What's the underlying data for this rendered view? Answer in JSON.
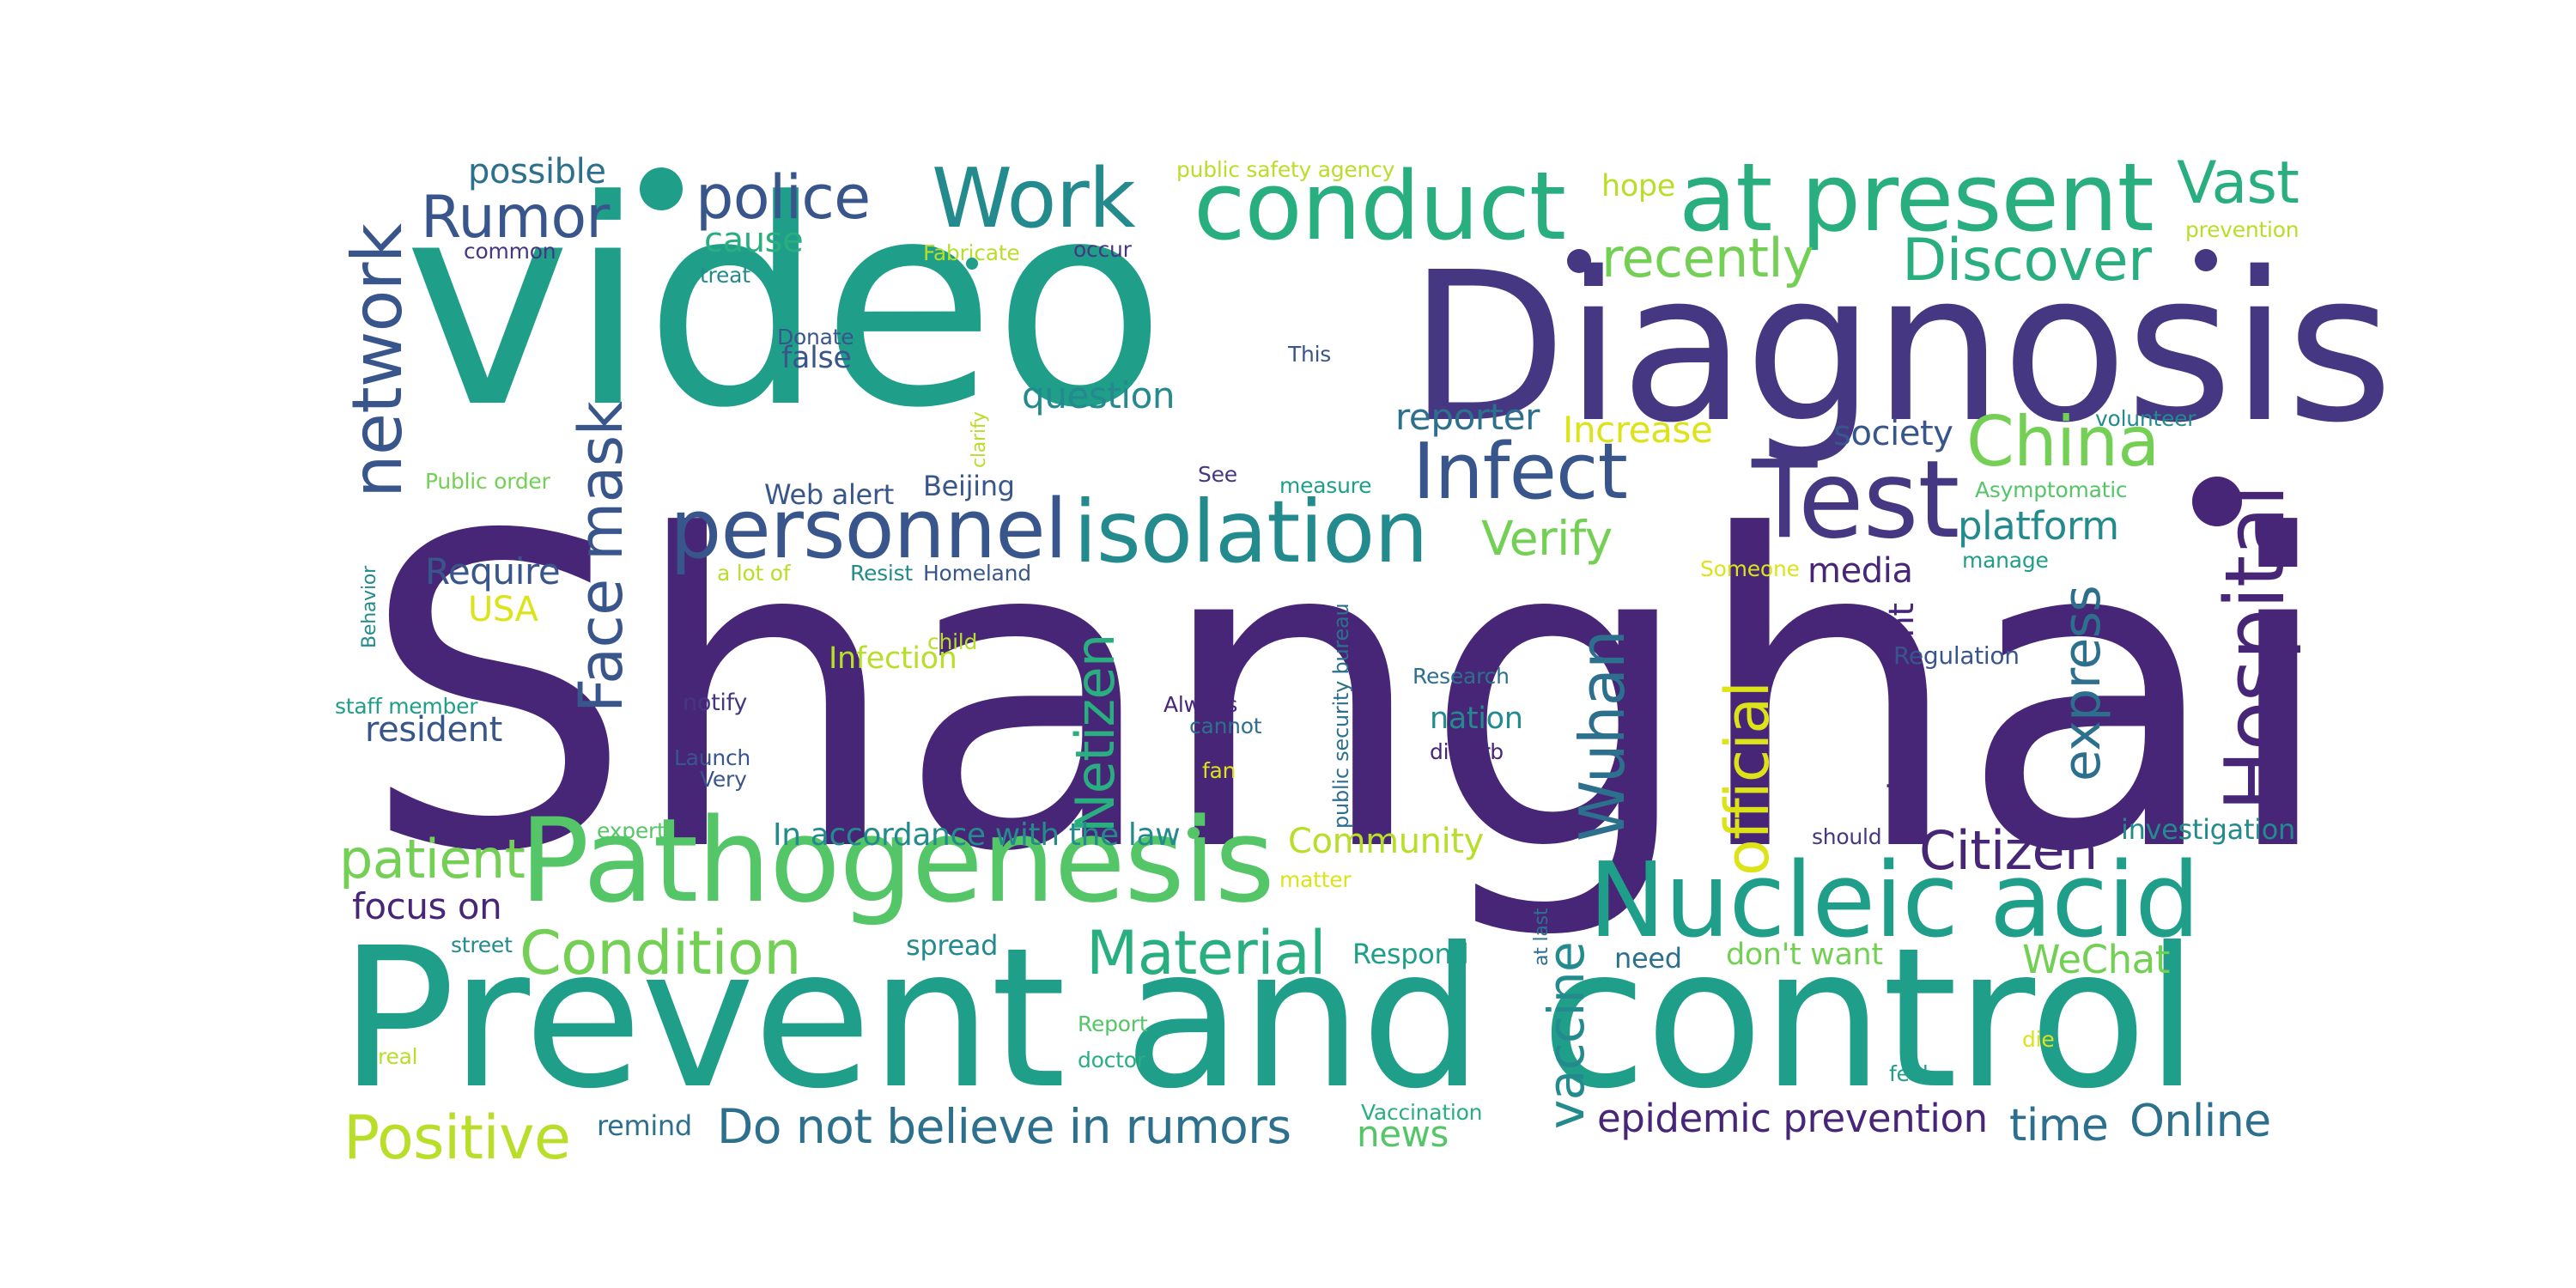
{
  "palette": {
    "c1": "#482677",
    "c2": "#453781",
    "c3": "#39568c",
    "c4": "#2d708e",
    "c5": "#238a8d",
    "c6": "#1f9e89",
    "c7": "#29af7f",
    "c8": "#55c667",
    "c9": "#73d055",
    "c10": "#b8de29",
    "c11": "#dce319"
  },
  "words": [
    {
      "text": "Shanghai",
      "color": "c1"
    },
    {
      "text": "video",
      "color": "c6"
    },
    {
      "text": "Diagnosis",
      "color": "c2"
    },
    {
      "text": "Prevent and control",
      "color": "c6"
    },
    {
      "text": "Pathogenesis",
      "color": "c8"
    },
    {
      "text": "Nucleic acid",
      "color": "c6"
    },
    {
      "text": "conduct",
      "color": "c7"
    },
    {
      "text": "at present",
      "color": "c7"
    },
    {
      "text": "Hospital",
      "color": "c1"
    },
    {
      "text": "Test",
      "color": "c2"
    },
    {
      "text": "isolation",
      "color": "c5"
    },
    {
      "text": "personnel",
      "color": "c3"
    },
    {
      "text": "Infect",
      "color": "c3"
    },
    {
      "text": "Work",
      "color": "c5"
    },
    {
      "text": "network",
      "color": "c3"
    },
    {
      "text": "Face mask",
      "color": "c3"
    },
    {
      "text": "police",
      "color": "c3"
    },
    {
      "text": "Rumor",
      "color": "c3"
    },
    {
      "text": "Vast",
      "color": "c7"
    },
    {
      "text": "Discover",
      "color": "c7"
    },
    {
      "text": "China",
      "color": "c9"
    },
    {
      "text": "recently",
      "color": "c9"
    },
    {
      "text": "Material",
      "color": "c7"
    },
    {
      "text": "Condition",
      "color": "c9"
    },
    {
      "text": "Positive",
      "color": "c10"
    },
    {
      "text": "Do not believe in rumors",
      "color": "c4"
    },
    {
      "text": "Wuhan",
      "color": "c4"
    },
    {
      "text": "official",
      "color": "c11"
    },
    {
      "text": "Netizen",
      "color": "c7"
    },
    {
      "text": "Citizen",
      "color": "c1"
    },
    {
      "text": "express",
      "color": "c4"
    },
    {
      "text": "patient",
      "color": "c9"
    },
    {
      "text": "vaccine",
      "color": "c5"
    },
    {
      "text": "epidemic prevention",
      "color": "c1"
    },
    {
      "text": "Online",
      "color": "c4"
    },
    {
      "text": "time",
      "color": "c4"
    },
    {
      "text": "WeChat",
      "color": "c9"
    },
    {
      "text": "focus on",
      "color": "c1"
    },
    {
      "text": "question",
      "color": "c5"
    },
    {
      "text": "Verify",
      "color": "c9"
    },
    {
      "text": "platform",
      "color": "c5"
    },
    {
      "text": "reporter",
      "color": "c4"
    },
    {
      "text": "Increase",
      "color": "c11"
    },
    {
      "text": "society",
      "color": "c3"
    },
    {
      "text": "media",
      "color": "c1"
    },
    {
      "text": "Community",
      "color": "c10"
    },
    {
      "text": "In accordance with the law",
      "color": "c5"
    },
    {
      "text": "resident",
      "color": "c3"
    },
    {
      "text": "Require",
      "color": "c3"
    },
    {
      "text": "USA",
      "color": "c11"
    },
    {
      "text": "possible",
      "color": "c4"
    },
    {
      "text": "cause",
      "color": "c7"
    },
    {
      "text": "false",
      "color": "c3"
    },
    {
      "text": "department",
      "color": "c1"
    },
    {
      "text": "nation",
      "color": "c5"
    },
    {
      "text": "Infection",
      "color": "c10"
    },
    {
      "text": "investigation",
      "color": "c5"
    },
    {
      "text": "news",
      "color": "c8"
    },
    {
      "text": "remind",
      "color": "c4"
    },
    {
      "text": "Respond",
      "color": "c6"
    },
    {
      "text": "don't want",
      "color": "c9"
    },
    {
      "text": "need",
      "color": "c4"
    },
    {
      "text": "spread",
      "color": "c5"
    },
    {
      "text": "Web alert",
      "color": "c3"
    },
    {
      "text": "Beijing",
      "color": "c3"
    },
    {
      "text": "hope",
      "color": "c10"
    },
    {
      "text": "public safety agency",
      "color": "c10"
    },
    {
      "text": "prevention",
      "color": "c10"
    },
    {
      "text": "common",
      "color": "c2"
    },
    {
      "text": "Fabricate",
      "color": "c10"
    },
    {
      "text": "occur",
      "color": "c2"
    },
    {
      "text": "treat",
      "color": "c5"
    },
    {
      "text": "Donate",
      "color": "c3"
    },
    {
      "text": "This",
      "color": "c3"
    },
    {
      "text": "clarify",
      "color": "c10"
    },
    {
      "text": "volunteer",
      "color": "c5"
    },
    {
      "text": "Public order",
      "color": "c9"
    },
    {
      "text": "See",
      "color": "c2"
    },
    {
      "text": "measure",
      "color": "c6"
    },
    {
      "text": "Asymptomatic",
      "color": "c8"
    },
    {
      "text": "Behavior",
      "color": "c5"
    },
    {
      "text": "a lot of",
      "color": "c10"
    },
    {
      "text": "Resist",
      "color": "c5"
    },
    {
      "text": "Homeland",
      "color": "c3"
    },
    {
      "text": "Someone",
      "color": "c11"
    },
    {
      "text": "manage",
      "color": "c6"
    },
    {
      "text": "child",
      "color": "c10"
    },
    {
      "text": "public security bureau",
      "color": "c4"
    },
    {
      "text": "Research",
      "color": "c4"
    },
    {
      "text": "Regulation",
      "color": "c3"
    },
    {
      "text": "staff member",
      "color": "c6"
    },
    {
      "text": "notify",
      "color": "c2"
    },
    {
      "text": "Always",
      "color": "c1"
    },
    {
      "text": "cannot",
      "color": "c4"
    },
    {
      "text": "disturb",
      "color": "c1"
    },
    {
      "text": "Launch",
      "color": "c3"
    },
    {
      "text": "Very",
      "color": "c3"
    },
    {
      "text": "fan",
      "color": "c11"
    },
    {
      "text": "expert",
      "color": "c8"
    },
    {
      "text": "should",
      "color": "c2"
    },
    {
      "text": "matter",
      "color": "c11"
    },
    {
      "text": "street",
      "color": "c5"
    },
    {
      "text": "at last",
      "color": "c4"
    },
    {
      "text": "Report",
      "color": "c8"
    },
    {
      "text": "doctor",
      "color": "c7"
    },
    {
      "text": "real",
      "color": "c10"
    },
    {
      "text": "die",
      "color": "c11"
    },
    {
      "text": "feel",
      "color": "c6"
    },
    {
      "text": "Vaccination",
      "color": "c7"
    }
  ],
  "dots": [
    "c6",
    "c2",
    "c1",
    "c2",
    "c6",
    "c8"
  ]
}
